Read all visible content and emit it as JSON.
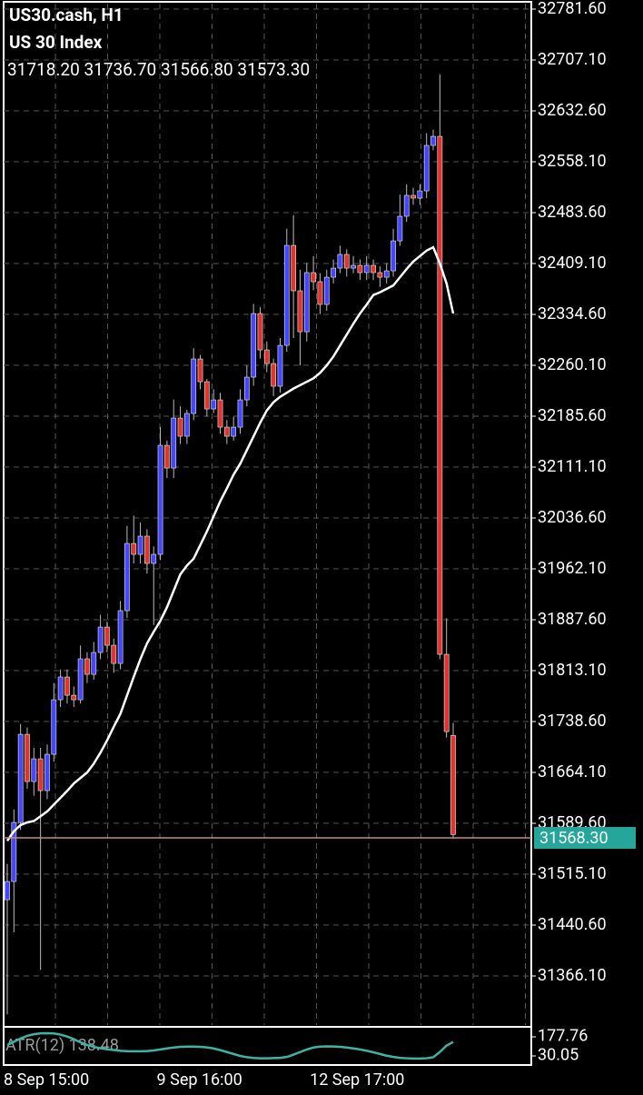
{
  "chart_data": [
    {
      "type": "candlestick",
      "title": "US30.cash, H1",
      "subtitle": "US 30 Index",
      "ohlc_text": "31718.20 31736.70 31566.80 31573.30",
      "categories": [
        "8 Sep 15:00",
        null,
        null,
        null,
        null,
        null,
        null,
        null,
        null,
        null,
        null,
        null,
        null,
        null,
        null,
        null,
        null,
        null,
        null,
        null,
        null,
        null,
        null,
        "9 Sep 16:00",
        null,
        null,
        null,
        null,
        null,
        null,
        null,
        null,
        null,
        null,
        null,
        null,
        null,
        null,
        null,
        null,
        null,
        null,
        null,
        null,
        null,
        null,
        "12 Sep 17:00",
        null,
        null,
        null,
        null,
        null,
        null,
        null,
        null,
        null,
        null,
        null,
        null,
        null,
        null,
        null,
        null,
        null,
        null,
        null,
        null,
        null
      ],
      "open": [
        31477.8,
        31504.4,
        31590.9,
        31719.9,
        31650.8,
        31684.0,
        31637.5,
        31690.7,
        31770.5,
        31803.8,
        31777.1,
        31770.5,
        31830.4,
        31807.7,
        31839.7,
        31876.9,
        31850.3,
        31823.7,
        31900.9,
        31999.3,
        31983.4,
        32010.0,
        31970.1,
        31983.4,
        32143.0,
        32109.7,
        32182.9,
        32156.3,
        32189.6,
        32269.4,
        32236.1,
        32196.2,
        32209.5,
        32169.6,
        32156.3,
        32169.6,
        32209.5,
        32242.8,
        32335.9,
        32282.7,
        32262.7,
        32229.5,
        32289.3,
        32435.7,
        32369.2,
        32309.3,
        32395.8,
        32382.5,
        32349.2,
        32389.1,
        32402.4,
        32422.4,
        32402.4,
        32406.4,
        32395.8,
        32406.4,
        32395.8,
        32389.1,
        32398.4,
        32442.3,
        32478.3,
        32508.9,
        32504.9,
        32515.5,
        32582.0,
        32595.3,
        31837.0,
        31718.2
      ],
      "high": [
        31530,
        31610,
        31735,
        31730,
        31700,
        31700,
        31705,
        31795,
        31815,
        31815,
        31790,
        31850,
        31840,
        31855,
        31895,
        31885,
        31860,
        31915,
        32025,
        32040,
        32030,
        32020,
        31995,
        32170,
        32150,
        32210,
        32200,
        32195,
        32285,
        32275,
        32240,
        32225,
        32220,
        32180,
        32185,
        32225,
        32260,
        32350,
        32345,
        32295,
        32270,
        32300,
        32460,
        32480,
        32400,
        32410,
        32420,
        32395,
        32400,
        32415,
        32435,
        32430,
        32420,
        32415,
        32420,
        32415,
        32405,
        32410,
        32460,
        32510,
        32525,
        32520,
        32525,
        32600,
        32605,
        32685.8,
        31890,
        31736.7
      ],
      "low": [
        31310,
        31430,
        31580,
        31640,
        31630,
        31375,
        31625,
        31680,
        31760,
        31765,
        31760,
        31765,
        31795,
        31800,
        31830,
        31840,
        31810,
        31815,
        31890,
        31970,
        31970,
        31955,
        31880,
        31975,
        32095,
        32095,
        32145,
        32145,
        32180,
        32225,
        32185,
        32190,
        32160,
        32145,
        32150,
        32160,
        32200,
        32230,
        32270,
        32250,
        32215,
        32220,
        32280,
        32300,
        32260,
        32295,
        32370,
        32335,
        32340,
        32380,
        32395,
        32390,
        32395,
        32385,
        32385,
        32385,
        32375,
        32380,
        32390,
        32435,
        32470,
        32495,
        32495,
        32505,
        32575,
        31830,
        31715,
        31566.8
      ],
      "close": [
        31504.4,
        31590.9,
        31719.9,
        31650.8,
        31684.0,
        31637.5,
        31690.7,
        31770.5,
        31803.8,
        31777.1,
        31770.5,
        31830.4,
        31807.7,
        31839.7,
        31876.9,
        31850.3,
        31823.7,
        31900.9,
        31999.3,
        31983.4,
        32010.0,
        31970.1,
        31983.4,
        32143.0,
        32109.7,
        32182.9,
        32156.3,
        32189.6,
        32269.4,
        32236.1,
        32196.2,
        32209.5,
        32169.6,
        32156.3,
        32169.6,
        32209.5,
        32242.8,
        32335.9,
        32282.7,
        32262.7,
        32229.5,
        32289.3,
        32435.7,
        32369.2,
        32309.3,
        32395.8,
        32382.5,
        32349.2,
        32389.1,
        32402.4,
        32422.4,
        32402.4,
        32406.4,
        32395.8,
        32406.4,
        32395.8,
        32389.1,
        32398.4,
        32442.3,
        32478.3,
        32508.9,
        32504.9,
        32515.5,
        32582.0,
        32595.3,
        31837.0,
        31723.9,
        31573.3
      ],
      "up_color": "#4646ff",
      "down_color": "#e0342f",
      "wick_color": "#bbbbbb",
      "overlay": {
        "color": "#ffffff",
        "values": [
          31564,
          31578,
          31587,
          31591,
          31593,
          31600,
          31607,
          31617,
          31627,
          31637,
          31648,
          31656,
          31664,
          31677,
          31693,
          31711,
          31731,
          31750,
          31777,
          31804,
          31830,
          31853,
          31870,
          31886,
          31906,
          31930,
          31954,
          31967,
          31977,
          31997,
          32017,
          32039,
          32061,
          32080,
          32100,
          32116,
          32136,
          32156,
          32176,
          32194,
          32206,
          32214,
          32220,
          32226,
          32231,
          32236,
          32241,
          32249,
          32260,
          32273,
          32289,
          32305,
          32321,
          32336,
          32349,
          32363,
          32367,
          32372,
          32377,
          32389,
          32401,
          32412,
          32420,
          32428,
          32433,
          32409,
          32380,
          32336
        ]
      },
      "ylim": [
        31294.3,
        32789.6
      ],
      "yticks": [
        {
          "value": 32781.6,
          "label": "32781.60"
        },
        {
          "value": 32707.1,
          "label": "32707.10"
        },
        {
          "value": 32632.6,
          "label": "32632.60"
        },
        {
          "value": 32558.1,
          "label": "32558.10"
        },
        {
          "value": 32483.6,
          "label": "32483.60"
        },
        {
          "value": 32409.1,
          "label": "32409.10"
        },
        {
          "value": 32334.6,
          "label": "32334.60"
        },
        {
          "value": 32260.1,
          "label": "32260.10"
        },
        {
          "value": 32185.6,
          "label": "32185.60"
        },
        {
          "value": 32111.1,
          "label": "32111.10"
        },
        {
          "value": 32036.6,
          "label": "32036.60"
        },
        {
          "value": 31962.1,
          "label": "31962.10"
        },
        {
          "value": 31887.6,
          "label": "31887.60"
        },
        {
          "value": 31813.1,
          "label": "31813.10"
        },
        {
          "value": 31738.6,
          "label": "31738.60"
        },
        {
          "value": 31664.1,
          "label": "31664.10"
        },
        {
          "value": 31589.6,
          "label": "31589.60"
        },
        {
          "value": 31515.1,
          "label": "31515.10"
        },
        {
          "value": 31440.6,
          "label": "31440.60"
        },
        {
          "value": 31366.1,
          "label": "31366.10"
        }
      ],
      "grid": true,
      "current_price": {
        "value": 31568.3,
        "label": "31568.30",
        "color": "#26a69a"
      }
    },
    {
      "type": "line",
      "label": "ATR(12) 138.48",
      "color": "#3db3a5",
      "values": [
        114,
        140,
        165,
        185,
        198,
        205,
        206,
        204,
        195,
        180,
        160,
        135,
        115,
        100,
        90,
        82,
        76,
        70,
        67,
        66,
        66,
        68,
        72,
        80,
        88,
        95,
        100,
        102,
        102,
        100,
        96,
        88,
        75,
        60,
        45,
        30,
        20,
        14,
        12,
        12,
        13,
        15,
        22,
        40,
        60,
        80,
        95,
        102,
        104,
        103,
        100,
        95,
        88,
        80,
        70,
        58,
        45,
        32,
        22,
        15,
        12,
        10,
        10,
        12,
        20,
        60,
        110,
        138.48
      ],
      "ylim": [
        -40.3,
        234.0
      ],
      "yticks": [
        177.76,
        30.05
      ]
    }
  ]
}
